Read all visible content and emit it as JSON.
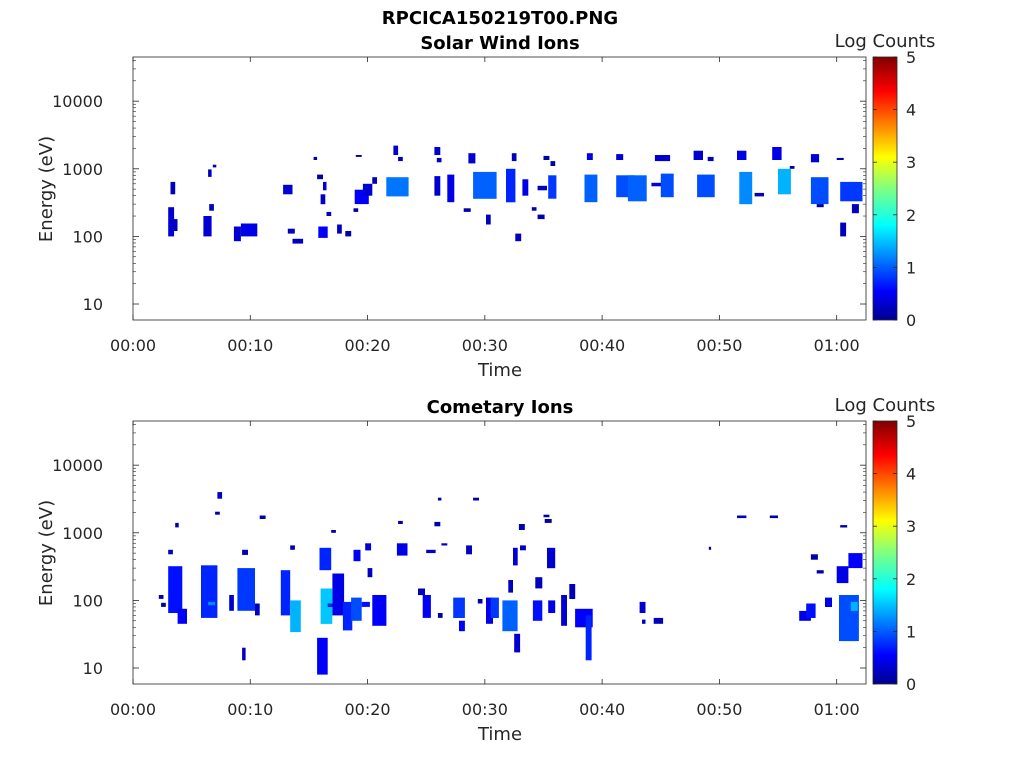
{
  "figure": {
    "title": "RPCICA150219T00.PNG"
  },
  "colorbar": {
    "label": "Log Counts",
    "range": [
      0,
      5
    ],
    "ticks": [
      "0",
      "1",
      "2",
      "3",
      "4",
      "5"
    ],
    "colormap": "jet"
  },
  "chart_data": [
    {
      "type": "heatmap",
      "title": "Solar Wind Ions",
      "xlabel": "Time",
      "ylabel": "Energy (eV)",
      "yscale": "log",
      "xlim_min": [
        0,
        62.5
      ],
      "ylim": [
        5.8,
        45000
      ],
      "x_ticks": [
        0,
        10,
        20,
        30,
        40,
        50,
        60
      ],
      "x_tick_labels": [
        "00:00",
        "00:10",
        "00:20",
        "00:30",
        "00:40",
        "00:50",
        "01:00"
      ],
      "y_ticks": [
        10,
        100,
        1000,
        10000
      ],
      "y_tick_labels": [
        "10",
        "100",
        "1000",
        "10000"
      ],
      "cells": [
        [
          3.0,
          3.5,
          100,
          270,
          0.4
        ],
        [
          3.5,
          3.8,
          120,
          180,
          0.3
        ],
        [
          3.2,
          3.6,
          420,
          640,
          0.3
        ],
        [
          6.0,
          6.7,
          100,
          200,
          0.4
        ],
        [
          6.5,
          6.9,
          240,
          300,
          0.3
        ],
        [
          6.4,
          6.7,
          760,
          980,
          0.3
        ],
        [
          6.8,
          7.1,
          1050,
          1150,
          0.2
        ],
        [
          8.6,
          9.2,
          85,
          140,
          0.4
        ],
        [
          9.2,
          10.6,
          100,
          155,
          0.5
        ],
        [
          12.8,
          13.6,
          420,
          580,
          0.4
        ],
        [
          13.6,
          14.5,
          78,
          92,
          0.3
        ],
        [
          13.2,
          13.8,
          110,
          130,
          0.3
        ],
        [
          15.4,
          15.7,
          1350,
          1500,
          0.2
        ],
        [
          15.7,
          16.2,
          700,
          820,
          0.2
        ],
        [
          15.8,
          16.6,
          95,
          140,
          0.6
        ],
        [
          16.0,
          16.4,
          300,
          420,
          0.3
        ],
        [
          16.2,
          16.5,
          480,
          640,
          0.4
        ],
        [
          16.5,
          16.9,
          200,
          230,
          0.3
        ],
        [
          17.4,
          17.8,
          110,
          150,
          0.3
        ],
        [
          18.1,
          18.6,
          100,
          120,
          0.2
        ],
        [
          18.8,
          19.2,
          230,
          260,
          0.2
        ],
        [
          18.9,
          20.1,
          300,
          490,
          0.6
        ],
        [
          19.6,
          20.4,
          400,
          600,
          0.4
        ],
        [
          19.0,
          19.5,
          1500,
          1600,
          0.2
        ],
        [
          20.4,
          20.8,
          600,
          750,
          0.3
        ],
        [
          21.6,
          23.5,
          390,
          750,
          1.2
        ],
        [
          22.2,
          22.6,
          1600,
          2200,
          0.4
        ],
        [
          22.6,
          23.0,
          1300,
          1500,
          0.3
        ],
        [
          25.7,
          26.2,
          1600,
          2100,
          0.4
        ],
        [
          25.9,
          26.3,
          1250,
          1450,
          0.3
        ],
        [
          25.7,
          26.2,
          400,
          780,
          0.4
        ],
        [
          26.8,
          27.4,
          320,
          820,
          0.5
        ],
        [
          28.6,
          29.2,
          1200,
          1700,
          0.4
        ],
        [
          29.0,
          31.0,
          360,
          900,
          1.1
        ],
        [
          28.2,
          28.8,
          230,
          260,
          0.2
        ],
        [
          30.1,
          30.5,
          150,
          210,
          0.3
        ],
        [
          31.8,
          32.6,
          320,
          1000,
          0.8
        ],
        [
          32.3,
          32.7,
          1300,
          1700,
          0.3
        ],
        [
          32.6,
          33.1,
          85,
          110,
          0.3
        ],
        [
          33.2,
          33.7,
          400,
          700,
          0.5
        ],
        [
          34.0,
          34.4,
          240,
          270,
          0.2
        ],
        [
          34.5,
          35.1,
          180,
          210,
          0.2
        ],
        [
          34.5,
          35.3,
          480,
          560,
          0.3
        ],
        [
          35.0,
          35.5,
          1350,
          1550,
          0.2
        ],
        [
          35.4,
          36.1,
          360,
          800,
          0.9
        ],
        [
          35.6,
          36.0,
          1100,
          1300,
          0.2
        ],
        [
          38.5,
          39.6,
          320,
          820,
          1.1
        ],
        [
          38.7,
          39.2,
          1350,
          1700,
          0.5
        ],
        [
          41.2,
          41.8,
          1350,
          1650,
          0.4
        ],
        [
          41.2,
          42.8,
          380,
          800,
          1.0
        ],
        [
          42.2,
          43.8,
          330,
          800,
          1.1
        ],
        [
          44.2,
          45.5,
          550,
          620,
          0.5
        ],
        [
          45.0,
          46.1,
          380,
          850,
          1.0
        ],
        [
          44.5,
          45.8,
          1300,
          1600,
          0.4
        ],
        [
          47.8,
          48.6,
          1350,
          1850,
          0.4
        ],
        [
          48.1,
          49.6,
          380,
          820,
          1.0
        ],
        [
          49.0,
          49.5,
          1300,
          1500,
          0.3
        ],
        [
          51.5,
          52.3,
          1350,
          1850,
          0.5
        ],
        [
          51.7,
          52.8,
          300,
          900,
          1.3
        ],
        [
          53.0,
          53.8,
          390,
          440,
          0.3
        ],
        [
          54.5,
          55.3,
          1350,
          2100,
          0.5
        ],
        [
          55.0,
          56.1,
          420,
          1000,
          1.5
        ],
        [
          56.0,
          56.4,
          1000,
          1100,
          0.2
        ],
        [
          57.8,
          58.5,
          1250,
          1650,
          0.4
        ],
        [
          57.8,
          59.3,
          300,
          750,
          1.0
        ],
        [
          58.3,
          58.9,
          270,
          300,
          0.2
        ],
        [
          60.0,
          60.6,
          1350,
          1450,
          0.2
        ],
        [
          60.3,
          60.8,
          100,
          160,
          0.3
        ],
        [
          60.3,
          62.2,
          330,
          640,
          0.9
        ],
        [
          61.3,
          61.9,
          220,
          300,
          0.3
        ]
      ]
    },
    {
      "type": "heatmap",
      "title": "Cometary Ions",
      "xlabel": "Time",
      "ylabel": "Energy (eV)",
      "yscale": "log",
      "xlim_min": [
        0,
        62.5
      ],
      "ylim": [
        5.8,
        45000
      ],
      "x_ticks": [
        0,
        10,
        20,
        30,
        40,
        50,
        60
      ],
      "x_tick_labels": [
        "00:00",
        "00:10",
        "00:20",
        "00:30",
        "00:40",
        "00:50",
        "01:00"
      ],
      "y_ticks": [
        10,
        100,
        1000,
        10000
      ],
      "y_tick_labels": [
        "10",
        "100",
        "1000",
        "10000"
      ],
      "cells": [
        [
          2.2,
          2.6,
          105,
          120,
          0.2
        ],
        [
          2.4,
          2.8,
          80,
          92,
          0.2
        ],
        [
          3.0,
          3.4,
          480,
          560,
          0.3
        ],
        [
          3.0,
          4.2,
          65,
          320,
          0.7
        ],
        [
          3.8,
          4.6,
          45,
          75,
          0.6
        ],
        [
          3.6,
          3.9,
          1200,
          1400,
          0.2
        ],
        [
          5.8,
          7.2,
          55,
          330,
          0.8
        ],
        [
          6.4,
          7.0,
          85,
          95,
          1.3
        ],
        [
          7.2,
          7.6,
          3200,
          4000,
          0.3
        ],
        [
          7.0,
          7.4,
          1850,
          2050,
          0.2
        ],
        [
          8.2,
          8.6,
          70,
          120,
          0.4
        ],
        [
          8.9,
          10.4,
          70,
          300,
          0.9
        ],
        [
          9.3,
          9.8,
          470,
          560,
          0.3
        ],
        [
          9.3,
          9.6,
          13,
          20,
          0.3
        ],
        [
          10.8,
          11.3,
          1600,
          1800,
          0.2
        ],
        [
          10.4,
          10.8,
          60,
          90,
          0.3
        ],
        [
          12.6,
          13.4,
          60,
          280,
          0.8
        ],
        [
          13.4,
          14.3,
          34,
          100,
          1.5
        ],
        [
          13.4,
          13.8,
          560,
          650,
          0.2
        ],
        [
          15.7,
          16.6,
          8,
          28,
          0.6
        ],
        [
          16.0,
          17.0,
          45,
          150,
          1.6
        ],
        [
          15.9,
          16.9,
          280,
          600,
          0.8
        ],
        [
          16.6,
          17.2,
          80,
          90,
          0.8
        ],
        [
          17.0,
          18.0,
          60,
          250,
          0.5
        ],
        [
          16.9,
          17.3,
          1000,
          1100,
          0.2
        ],
        [
          17.9,
          18.7,
          36,
          95,
          0.8
        ],
        [
          18.6,
          19.5,
          50,
          110,
          1.0
        ],
        [
          18.8,
          19.4,
          380,
          560,
          0.6
        ],
        [
          19.5,
          20.2,
          80,
          95,
          0.7
        ],
        [
          19.8,
          20.3,
          550,
          700,
          0.4
        ],
        [
          20.0,
          20.4,
          220,
          300,
          0.3
        ],
        [
          20.4,
          21.6,
          42,
          120,
          0.6
        ],
        [
          22.5,
          23.4,
          460,
          700,
          0.5
        ],
        [
          22.6,
          23.0,
          1350,
          1500,
          0.2
        ],
        [
          24.3,
          24.9,
          120,
          150,
          0.3
        ],
        [
          24.7,
          25.4,
          55,
          120,
          0.6
        ],
        [
          25.0,
          25.8,
          500,
          560,
          0.3
        ],
        [
          25.7,
          26.2,
          1250,
          1450,
          0.2
        ],
        [
          26.0,
          26.4,
          55,
          65,
          0.2
        ],
        [
          26.0,
          26.3,
          3000,
          3300,
          0.2
        ],
        [
          26.3,
          26.8,
          650,
          700,
          0.3
        ],
        [
          27.3,
          28.3,
          55,
          110,
          0.9
        ],
        [
          27.8,
          28.3,
          35,
          50,
          0.6
        ],
        [
          28.4,
          28.9,
          480,
          650,
          0.3
        ],
        [
          29.0,
          29.5,
          3000,
          3300,
          0.2
        ],
        [
          29.4,
          29.8,
          90,
          105,
          0.2
        ],
        [
          30.1,
          30.7,
          45,
          110,
          0.5
        ],
        [
          30.5,
          31.2,
          55,
          110,
          0.9
        ],
        [
          31.5,
          32.8,
          35,
          100,
          1.1
        ],
        [
          32.0,
          32.4,
          130,
          200,
          0.3
        ],
        [
          32.4,
          32.8,
          330,
          600,
          0.4
        ],
        [
          32.5,
          33.0,
          17,
          32,
          0.4
        ],
        [
          32.9,
          33.4,
          1100,
          1350,
          0.2
        ],
        [
          33.0,
          33.5,
          550,
          650,
          0.3
        ],
        [
          34.1,
          34.9,
          50,
          100,
          0.7
        ],
        [
          34.3,
          34.9,
          150,
          220,
          0.3
        ],
        [
          35.0,
          35.5,
          1700,
          1850,
          0.2
        ],
        [
          35.1,
          35.7,
          1400,
          1600,
          0.2
        ],
        [
          35.3,
          36.0,
          300,
          600,
          0.4
        ],
        [
          35.4,
          36.0,
          65,
          100,
          0.5
        ],
        [
          36.5,
          37.0,
          42,
          120,
          0.4
        ],
        [
          37.2,
          37.7,
          105,
          175,
          0.3
        ],
        [
          37.7,
          39.2,
          40,
          75,
          0.6
        ],
        [
          38.6,
          39.1,
          13,
          60,
          0.8
        ],
        [
          43.2,
          43.7,
          65,
          95,
          0.4
        ],
        [
          43.4,
          43.7,
          45,
          52,
          0.3
        ],
        [
          44.4,
          45.2,
          45,
          55,
          0.3
        ],
        [
          49.1,
          49.3,
          560,
          620,
          0.2
        ],
        [
          51.5,
          52.3,
          1650,
          1800,
          0.3
        ],
        [
          54.3,
          55.0,
          1650,
          1800,
          0.2
        ],
        [
          56.8,
          57.8,
          50,
          70,
          0.5
        ],
        [
          57.4,
          58.2,
          55,
          90,
          0.7
        ],
        [
          57.8,
          58.4,
          400,
          480,
          0.2
        ],
        [
          58.3,
          58.9,
          250,
          280,
          0.2
        ],
        [
          59.0,
          59.6,
          80,
          110,
          0.5
        ],
        [
          60.0,
          61.0,
          180,
          320,
          0.5
        ],
        [
          60.2,
          61.9,
          25,
          120,
          1.0
        ],
        [
          61.0,
          62.2,
          300,
          500,
          0.6
        ],
        [
          60.3,
          60.9,
          1200,
          1300,
          0.2
        ],
        [
          61.2,
          61.8,
          70,
          95,
          1.5
        ]
      ]
    }
  ]
}
